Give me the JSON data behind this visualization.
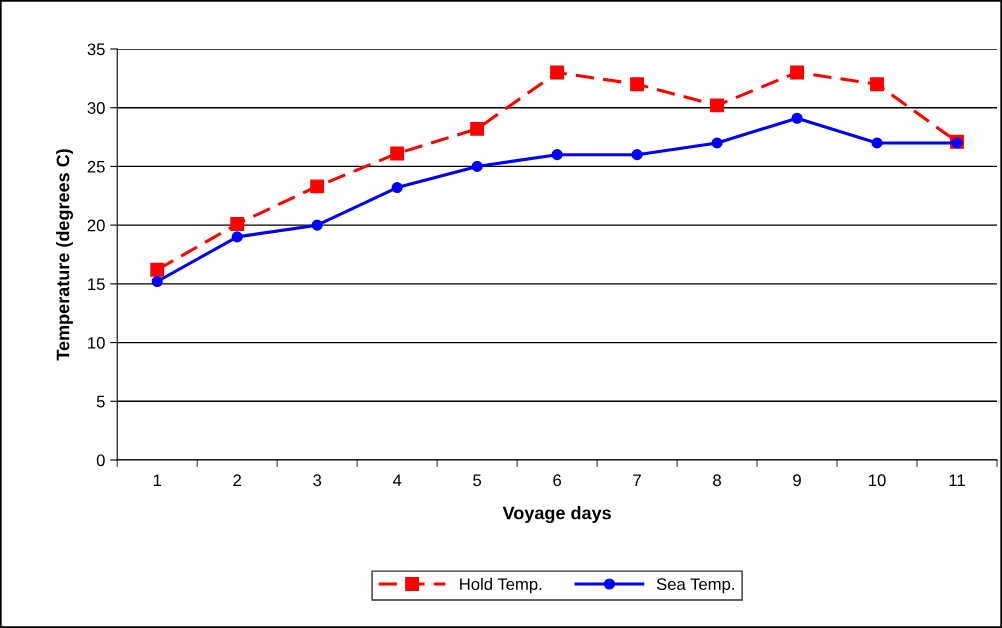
{
  "chart_data": {
    "type": "line",
    "xlabel": "Voyage days",
    "ylabel": "Temperature (degrees C)",
    "categories": [
      "1",
      "2",
      "3",
      "4",
      "5",
      "6",
      "7",
      "8",
      "9",
      "10",
      "11"
    ],
    "series": [
      {
        "name": "Hold Temp.",
        "color": "#ff0000",
        "marker": "square",
        "line_style": "dashed",
        "values": [
          16.2,
          20.1,
          23.3,
          26.1,
          28.2,
          33.0,
          32.0,
          30.2,
          33.0,
          32.0,
          27.1
        ]
      },
      {
        "name": "Sea Temp.",
        "color": "#0000ff",
        "marker": "circle",
        "line_style": "solid",
        "values": [
          15.2,
          19.0,
          20.0,
          23.2,
          25.0,
          26.0,
          26.0,
          27.0,
          29.1,
          27.0,
          27.0
        ]
      }
    ],
    "ylim": [
      0,
      35
    ],
    "yticks": [
      0,
      5,
      10,
      15,
      20,
      25,
      30,
      35
    ],
    "grid": "y",
    "legend": "bottom"
  }
}
